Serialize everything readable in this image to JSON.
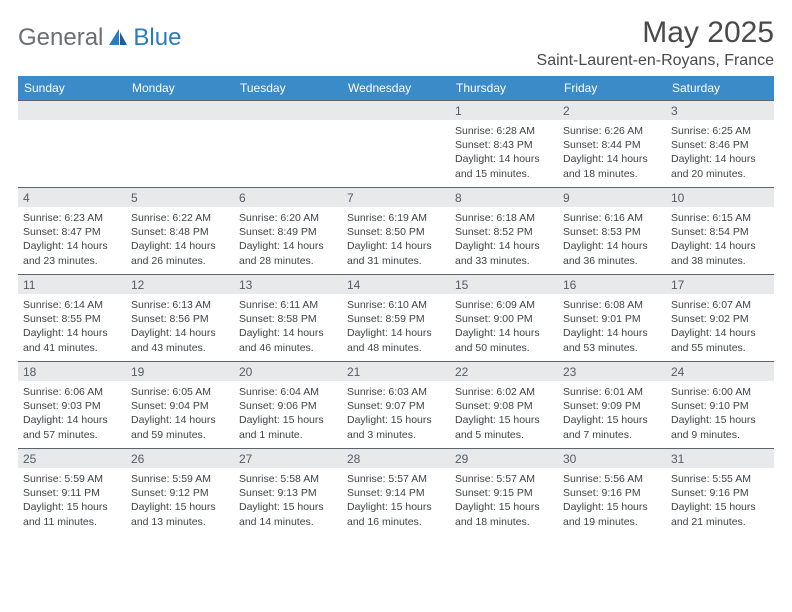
{
  "brand": {
    "word1": "General",
    "word2": "Blue"
  },
  "title": "May 2025",
  "location": "Saint-Laurent-en-Royans, France",
  "colors": {
    "header_bg": "#3b8bc8",
    "header_text": "#ffffff",
    "daynum_bg": "#e7e9eb",
    "week_border": "#5a6572",
    "text": "#404448",
    "brand_gray": "#6b6e72",
    "brand_blue": "#2b7bbf"
  },
  "dayNames": [
    "Sunday",
    "Monday",
    "Tuesday",
    "Wednesday",
    "Thursday",
    "Friday",
    "Saturday"
  ],
  "weeks": [
    [
      {
        "n": "",
        "sunrise": "",
        "sunset": "",
        "daylight1": "",
        "daylight2": ""
      },
      {
        "n": "",
        "sunrise": "",
        "sunset": "",
        "daylight1": "",
        "daylight2": ""
      },
      {
        "n": "",
        "sunrise": "",
        "sunset": "",
        "daylight1": "",
        "daylight2": ""
      },
      {
        "n": "",
        "sunrise": "",
        "sunset": "",
        "daylight1": "",
        "daylight2": ""
      },
      {
        "n": "1",
        "sunrise": "Sunrise: 6:28 AM",
        "sunset": "Sunset: 8:43 PM",
        "daylight1": "Daylight: 14 hours",
        "daylight2": "and 15 minutes."
      },
      {
        "n": "2",
        "sunrise": "Sunrise: 6:26 AM",
        "sunset": "Sunset: 8:44 PM",
        "daylight1": "Daylight: 14 hours",
        "daylight2": "and 18 minutes."
      },
      {
        "n": "3",
        "sunrise": "Sunrise: 6:25 AM",
        "sunset": "Sunset: 8:46 PM",
        "daylight1": "Daylight: 14 hours",
        "daylight2": "and 20 minutes."
      }
    ],
    [
      {
        "n": "4",
        "sunrise": "Sunrise: 6:23 AM",
        "sunset": "Sunset: 8:47 PM",
        "daylight1": "Daylight: 14 hours",
        "daylight2": "and 23 minutes."
      },
      {
        "n": "5",
        "sunrise": "Sunrise: 6:22 AM",
        "sunset": "Sunset: 8:48 PM",
        "daylight1": "Daylight: 14 hours",
        "daylight2": "and 26 minutes."
      },
      {
        "n": "6",
        "sunrise": "Sunrise: 6:20 AM",
        "sunset": "Sunset: 8:49 PM",
        "daylight1": "Daylight: 14 hours",
        "daylight2": "and 28 minutes."
      },
      {
        "n": "7",
        "sunrise": "Sunrise: 6:19 AM",
        "sunset": "Sunset: 8:50 PM",
        "daylight1": "Daylight: 14 hours",
        "daylight2": "and 31 minutes."
      },
      {
        "n": "8",
        "sunrise": "Sunrise: 6:18 AM",
        "sunset": "Sunset: 8:52 PM",
        "daylight1": "Daylight: 14 hours",
        "daylight2": "and 33 minutes."
      },
      {
        "n": "9",
        "sunrise": "Sunrise: 6:16 AM",
        "sunset": "Sunset: 8:53 PM",
        "daylight1": "Daylight: 14 hours",
        "daylight2": "and 36 minutes."
      },
      {
        "n": "10",
        "sunrise": "Sunrise: 6:15 AM",
        "sunset": "Sunset: 8:54 PM",
        "daylight1": "Daylight: 14 hours",
        "daylight2": "and 38 minutes."
      }
    ],
    [
      {
        "n": "11",
        "sunrise": "Sunrise: 6:14 AM",
        "sunset": "Sunset: 8:55 PM",
        "daylight1": "Daylight: 14 hours",
        "daylight2": "and 41 minutes."
      },
      {
        "n": "12",
        "sunrise": "Sunrise: 6:13 AM",
        "sunset": "Sunset: 8:56 PM",
        "daylight1": "Daylight: 14 hours",
        "daylight2": "and 43 minutes."
      },
      {
        "n": "13",
        "sunrise": "Sunrise: 6:11 AM",
        "sunset": "Sunset: 8:58 PM",
        "daylight1": "Daylight: 14 hours",
        "daylight2": "and 46 minutes."
      },
      {
        "n": "14",
        "sunrise": "Sunrise: 6:10 AM",
        "sunset": "Sunset: 8:59 PM",
        "daylight1": "Daylight: 14 hours",
        "daylight2": "and 48 minutes."
      },
      {
        "n": "15",
        "sunrise": "Sunrise: 6:09 AM",
        "sunset": "Sunset: 9:00 PM",
        "daylight1": "Daylight: 14 hours",
        "daylight2": "and 50 minutes."
      },
      {
        "n": "16",
        "sunrise": "Sunrise: 6:08 AM",
        "sunset": "Sunset: 9:01 PM",
        "daylight1": "Daylight: 14 hours",
        "daylight2": "and 53 minutes."
      },
      {
        "n": "17",
        "sunrise": "Sunrise: 6:07 AM",
        "sunset": "Sunset: 9:02 PM",
        "daylight1": "Daylight: 14 hours",
        "daylight2": "and 55 minutes."
      }
    ],
    [
      {
        "n": "18",
        "sunrise": "Sunrise: 6:06 AM",
        "sunset": "Sunset: 9:03 PM",
        "daylight1": "Daylight: 14 hours",
        "daylight2": "and 57 minutes."
      },
      {
        "n": "19",
        "sunrise": "Sunrise: 6:05 AM",
        "sunset": "Sunset: 9:04 PM",
        "daylight1": "Daylight: 14 hours",
        "daylight2": "and 59 minutes."
      },
      {
        "n": "20",
        "sunrise": "Sunrise: 6:04 AM",
        "sunset": "Sunset: 9:06 PM",
        "daylight1": "Daylight: 15 hours",
        "daylight2": "and 1 minute."
      },
      {
        "n": "21",
        "sunrise": "Sunrise: 6:03 AM",
        "sunset": "Sunset: 9:07 PM",
        "daylight1": "Daylight: 15 hours",
        "daylight2": "and 3 minutes."
      },
      {
        "n": "22",
        "sunrise": "Sunrise: 6:02 AM",
        "sunset": "Sunset: 9:08 PM",
        "daylight1": "Daylight: 15 hours",
        "daylight2": "and 5 minutes."
      },
      {
        "n": "23",
        "sunrise": "Sunrise: 6:01 AM",
        "sunset": "Sunset: 9:09 PM",
        "daylight1": "Daylight: 15 hours",
        "daylight2": "and 7 minutes."
      },
      {
        "n": "24",
        "sunrise": "Sunrise: 6:00 AM",
        "sunset": "Sunset: 9:10 PM",
        "daylight1": "Daylight: 15 hours",
        "daylight2": "and 9 minutes."
      }
    ],
    [
      {
        "n": "25",
        "sunrise": "Sunrise: 5:59 AM",
        "sunset": "Sunset: 9:11 PM",
        "daylight1": "Daylight: 15 hours",
        "daylight2": "and 11 minutes."
      },
      {
        "n": "26",
        "sunrise": "Sunrise: 5:59 AM",
        "sunset": "Sunset: 9:12 PM",
        "daylight1": "Daylight: 15 hours",
        "daylight2": "and 13 minutes."
      },
      {
        "n": "27",
        "sunrise": "Sunrise: 5:58 AM",
        "sunset": "Sunset: 9:13 PM",
        "daylight1": "Daylight: 15 hours",
        "daylight2": "and 14 minutes."
      },
      {
        "n": "28",
        "sunrise": "Sunrise: 5:57 AM",
        "sunset": "Sunset: 9:14 PM",
        "daylight1": "Daylight: 15 hours",
        "daylight2": "and 16 minutes."
      },
      {
        "n": "29",
        "sunrise": "Sunrise: 5:57 AM",
        "sunset": "Sunset: 9:15 PM",
        "daylight1": "Daylight: 15 hours",
        "daylight2": "and 18 minutes."
      },
      {
        "n": "30",
        "sunrise": "Sunrise: 5:56 AM",
        "sunset": "Sunset: 9:16 PM",
        "daylight1": "Daylight: 15 hours",
        "daylight2": "and 19 minutes."
      },
      {
        "n": "31",
        "sunrise": "Sunrise: 5:55 AM",
        "sunset": "Sunset: 9:16 PM",
        "daylight1": "Daylight: 15 hours",
        "daylight2": "and 21 minutes."
      }
    ]
  ]
}
